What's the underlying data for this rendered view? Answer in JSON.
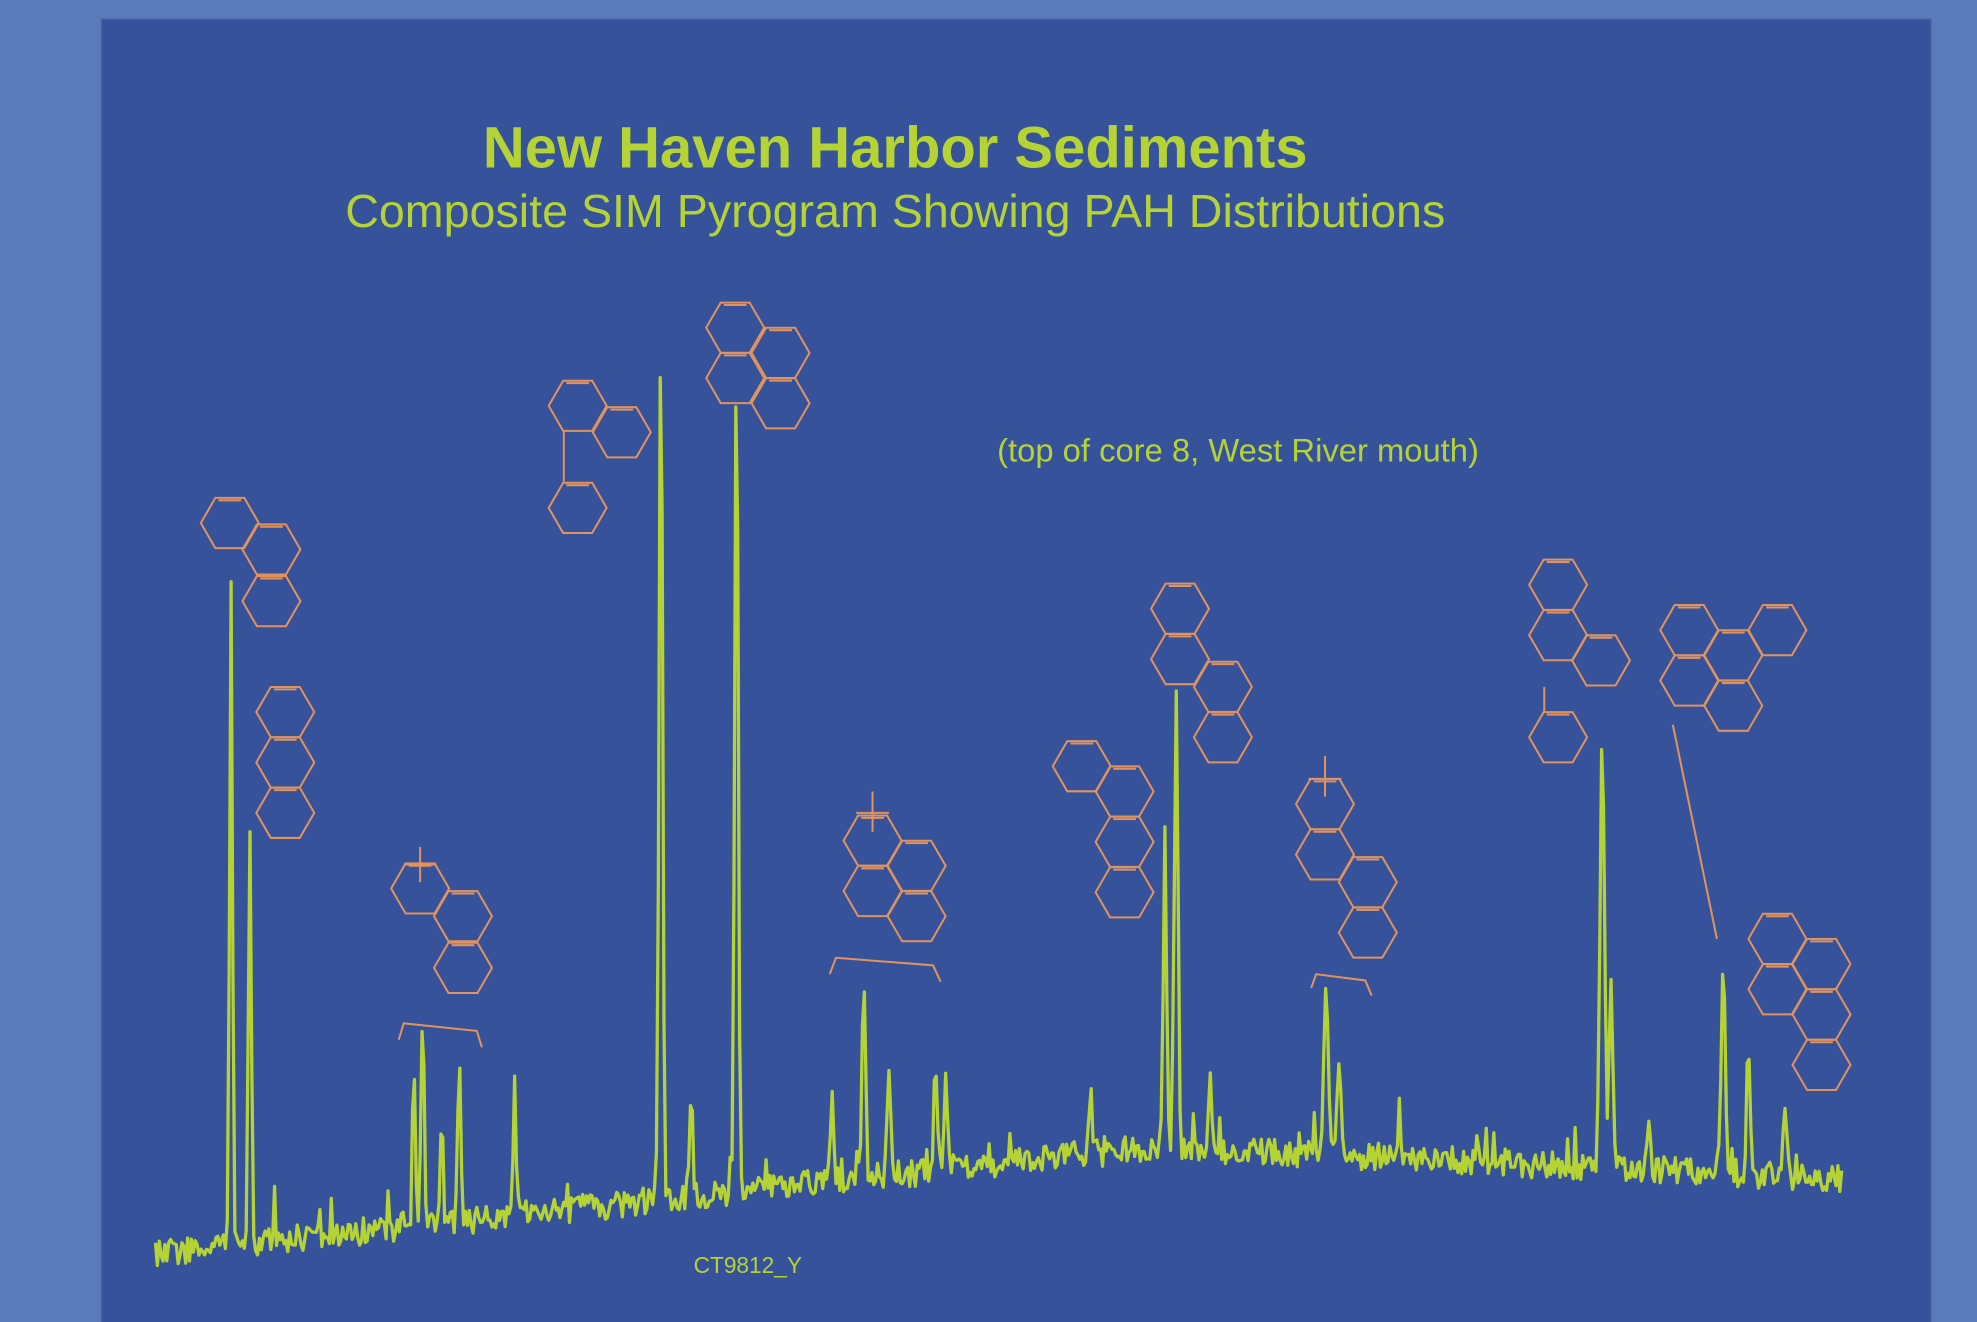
{
  "header": {
    "title": "New Haven Harbor Sediments",
    "subtitle": "Composite SIM Pyrogram Showing PAH Distributions"
  },
  "note": "(top of core 8, West River mouth)",
  "sample_label": "CT9812_Y"
}
